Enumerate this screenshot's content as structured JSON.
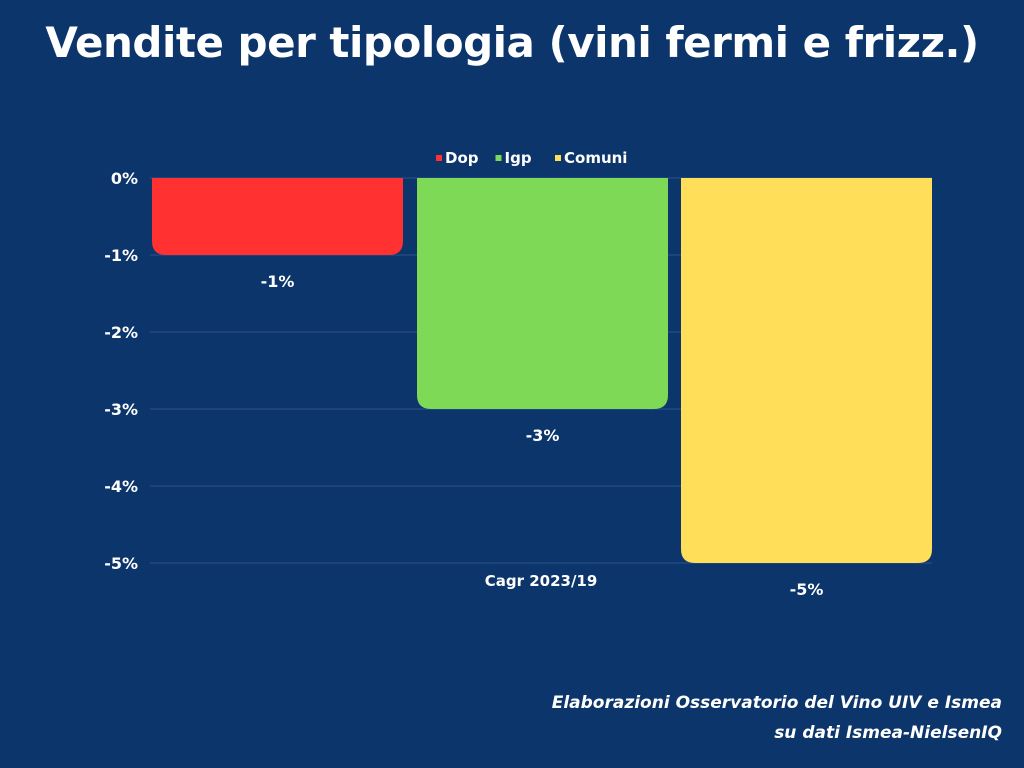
{
  "title": "Vendite per tipologia (vini fermi e frizz.)",
  "source": [
    "Elaborazioni Osservatorio del Vino UIV e Ismea",
    "su dati Ismea-NielsenIQ"
  ],
  "chart_data": {
    "type": "bar",
    "title": "Vendite per tipologia (vini fermi e frizz.)",
    "categories": [
      "Cagr 2023/19"
    ],
    "series": [
      {
        "name": "Dop",
        "values": [
          -1
        ],
        "color": "#ff3131",
        "label": "-1%"
      },
      {
        "name": "Igp",
        "values": [
          -3
        ],
        "color": "#7ed957",
        "label": "-3%"
      },
      {
        "name": "Comuni",
        "values": [
          -5
        ],
        "color": "#ffde59",
        "label": "-5%"
      }
    ],
    "yticks": [
      "0%",
      "-1%",
      "-2%",
      "-3%",
      "-4%",
      "-5%"
    ],
    "ylim": [
      -5,
      0
    ],
    "grid": true,
    "legend": "top"
  }
}
